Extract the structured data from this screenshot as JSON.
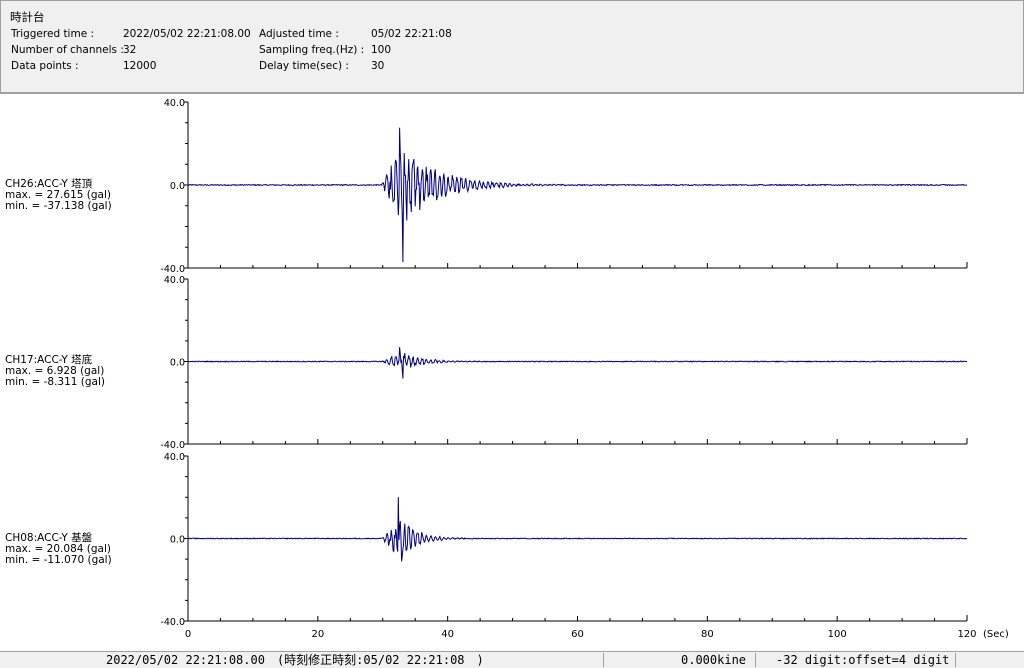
{
  "window": {
    "title": "時計台"
  },
  "header": {
    "triggered_label": "Triggered time :",
    "triggered_value": "2022/05/02 22:21:08.00",
    "channels_label": "Number of channels :",
    "channels_value": "32",
    "datapoints_label": "Data points :",
    "datapoints_value": "12000",
    "adjusted_label": "Adjusted time :",
    "adjusted_value": "05/02 22:21:08",
    "sampling_label": "Sampling freq.(Hz) :",
    "sampling_value": "100",
    "delay_label": "Delay time(sec) :",
    "delay_value": "30"
  },
  "channels": [
    {
      "name": "CH26:ACC-Y 塔頂",
      "max": "max. = 27.615 (gal)",
      "min": "min. = -37.138 (gal)"
    },
    {
      "name": "CH17:ACC-Y 塔底",
      "max": "max. = 6.928 (gal)",
      "min": "min. = -8.311 (gal)"
    },
    {
      "name": "CH08:ACC-Y 基盤",
      "max": "max. = 20.084 (gal)",
      "min": "min. = -11.070 (gal)"
    }
  ],
  "statusbar": {
    "datetime": "2022/05/02 22:21:08.00　(時刻修正時刻:05/02 22:21:08　)",
    "velocity": "0.000kine",
    "digit": "-32 digit:offset=4 digit"
  },
  "colors": {
    "trace": "#000080",
    "axis": "#000000",
    "panel": "#f0f0f0"
  },
  "chart_data": {
    "type": "line",
    "xlabel": "(Sec)",
    "xlim": [
      0,
      120
    ],
    "x_ticks": [
      "0",
      "20",
      "40",
      "60",
      "80",
      "100",
      "120"
    ],
    "y_ticks": [
      "40.0",
      "0.0",
      "-40.0"
    ],
    "ylim": [
      -40,
      40
    ],
    "series": [
      {
        "name": "CH26:ACC-Y 塔頂",
        "max": 27.615,
        "min": -37.138,
        "onset": 29.8,
        "peak_time": 33.0,
        "decay": 5.5,
        "noise": 0.25
      },
      {
        "name": "CH17:ACC-Y 塔底",
        "max": 6.928,
        "min": -8.311,
        "onset": 29.8,
        "peak_time": 33.0,
        "decay": 3.0,
        "noise": 0.2
      },
      {
        "name": "CH08:ACC-Y 基盤",
        "max": 20.084,
        "min": -11.07,
        "onset": 29.8,
        "peak_time": 32.8,
        "decay": 2.5,
        "noise": 0.2
      }
    ]
  }
}
